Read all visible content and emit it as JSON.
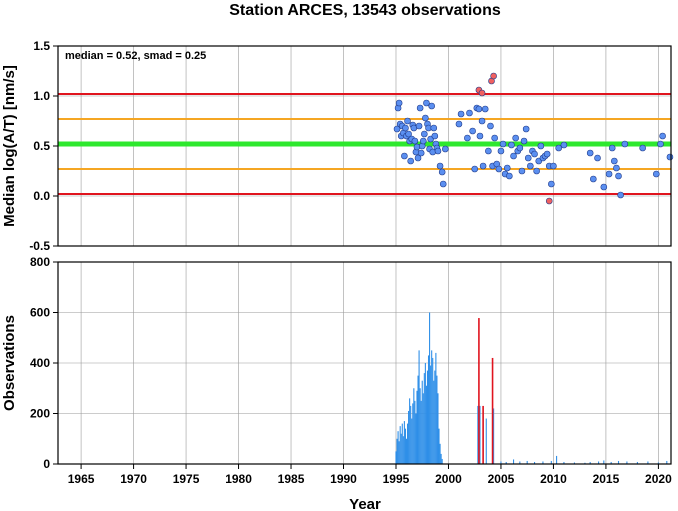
{
  "title": "Station ARCES, 13543 observations",
  "xlabel": "Year",
  "x_ticks": [
    "1965",
    "1970",
    "1975",
    "1980",
    "1985",
    "1990",
    "1995",
    "2000",
    "2005",
    "2010",
    "2015",
    "2020"
  ],
  "chart_data": [
    {
      "type": "scatter",
      "ylabel": "Median log(A/T) [nm/s]",
      "annotation": "median = 0.52, smad = 0.25",
      "xlim": [
        1962.8,
        2021.2
      ],
      "ylim": [
        -0.5,
        1.5
      ],
      "y_ticks": [
        "-0.5",
        "0.0",
        "0.5",
        "1.0",
        "1.5"
      ],
      "grid": true,
      "reference_lines": [
        {
          "y": 0.52,
          "color": "#2ee82e",
          "label": "median"
        },
        {
          "y": 0.77,
          "color": "#f5a623",
          "label": "median + smad"
        },
        {
          "y": 0.27,
          "color": "#f5a623",
          "label": "median - smad"
        },
        {
          "y": 1.02,
          "color": "#e0141e",
          "label": "median + 2 smad"
        },
        {
          "y": 0.02,
          "color": "#e0141e",
          "label": "median - 2 smad"
        }
      ],
      "colors": {
        "inlier": "#5b8ff0",
        "outlier": "#f06060"
      },
      "series": [
        {
          "points": [
            [
              1995.1,
              0.67
            ],
            [
              1995.2,
              0.88
            ],
            [
              1995.3,
              0.93
            ],
            [
              1995.4,
              0.72
            ],
            [
              1995.5,
              0.6
            ],
            [
              1995.6,
              0.7
            ],
            [
              1995.7,
              0.63
            ],
            [
              1995.8,
              0.4
            ],
            [
              1995.9,
              0.68
            ],
            [
              1996.0,
              0.6
            ],
            [
              1996.1,
              0.75
            ],
            [
              1996.2,
              0.62
            ],
            [
              1996.3,
              0.55
            ],
            [
              1996.4,
              0.35
            ],
            [
              1996.5,
              0.57
            ],
            [
              1996.6,
              0.71
            ],
            [
              1996.7,
              0.68
            ],
            [
              1996.8,
              0.55
            ],
            [
              1996.9,
              0.44
            ],
            [
              1997.0,
              0.49
            ],
            [
              1997.1,
              0.38
            ],
            [
              1997.2,
              0.7
            ],
            [
              1997.3,
              0.88
            ],
            [
              1997.4,
              0.43
            ],
            [
              1997.5,
              0.5
            ],
            [
              1997.6,
              0.55
            ],
            [
              1997.7,
              0.62
            ],
            [
              1997.8,
              0.78
            ],
            [
              1997.9,
              0.93
            ],
            [
              1998.0,
              0.72
            ],
            [
              1998.1,
              0.68
            ],
            [
              1998.2,
              0.47
            ],
            [
              1998.3,
              0.57
            ],
            [
              1998.4,
              0.9
            ],
            [
              1998.5,
              0.44
            ],
            [
              1998.6,
              0.68
            ],
            [
              1998.7,
              0.6
            ],
            [
              1998.8,
              0.52
            ],
            [
              1998.9,
              0.48
            ],
            [
              1999.0,
              0.45
            ],
            [
              1999.2,
              0.3
            ],
            [
              1999.4,
              0.24
            ],
            [
              1999.5,
              0.12
            ],
            [
              1999.7,
              0.47
            ],
            [
              2001.0,
              0.72
            ],
            [
              2001.2,
              0.82
            ],
            [
              2001.8,
              0.58
            ],
            [
              2002.0,
              0.83
            ],
            [
              2002.3,
              0.65
            ],
            [
              2002.5,
              0.27
            ],
            [
              2002.7,
              0.88
            ],
            [
              2002.9,
              0.87
            ],
            [
              2003.0,
              0.6
            ],
            [
              2003.2,
              0.75
            ],
            [
              2003.3,
              0.3
            ],
            [
              2003.5,
              0.87
            ],
            [
              2003.8,
              0.45
            ],
            [
              2004.0,
              0.7
            ],
            [
              2004.2,
              0.3
            ],
            [
              2004.4,
              0.58
            ],
            [
              2004.6,
              0.32
            ],
            [
              2004.8,
              0.27
            ],
            [
              2005.0,
              0.45
            ],
            [
              2005.2,
              0.52
            ],
            [
              2005.4,
              0.22
            ],
            [
              2005.6,
              0.28
            ],
            [
              2005.8,
              0.2
            ],
            [
              2006.0,
              0.51
            ],
            [
              2006.2,
              0.4
            ],
            [
              2006.4,
              0.58
            ],
            [
              2006.6,
              0.45
            ],
            [
              2006.8,
              0.48
            ],
            [
              2007.0,
              0.25
            ],
            [
              2007.2,
              0.55
            ],
            [
              2007.4,
              0.67
            ],
            [
              2007.6,
              0.38
            ],
            [
              2007.8,
              0.3
            ],
            [
              2008.0,
              0.45
            ],
            [
              2008.2,
              0.42
            ],
            [
              2008.4,
              0.25
            ],
            [
              2008.6,
              0.35
            ],
            [
              2008.8,
              0.5
            ],
            [
              2009.0,
              0.38
            ],
            [
              2009.2,
              0.4
            ],
            [
              2009.4,
              0.42
            ],
            [
              2009.6,
              0.3
            ],
            [
              2009.8,
              0.12
            ],
            [
              2010.0,
              0.3
            ],
            [
              2010.5,
              0.48
            ],
            [
              2011.0,
              0.51
            ],
            [
              2013.5,
              0.43
            ],
            [
              2013.8,
              0.17
            ],
            [
              2014.2,
              0.38
            ],
            [
              2014.8,
              0.09
            ],
            [
              2015.3,
              0.22
            ],
            [
              2015.6,
              0.48
            ],
            [
              2015.8,
              0.35
            ],
            [
              2016.0,
              0.28
            ],
            [
              2016.2,
              0.2
            ],
            [
              2016.4,
              0.01
            ],
            [
              2016.8,
              0.52
            ],
            [
              2018.5,
              0.48
            ],
            [
              2019.8,
              0.22
            ],
            [
              2020.2,
              0.52
            ],
            [
              2020.4,
              0.6
            ],
            [
              2021.1,
              0.39
            ]
          ]
        },
        {
          "points": [
            [
              2002.9,
              1.06
            ],
            [
              2003.2,
              1.03
            ],
            [
              2004.1,
              1.15
            ],
            [
              2004.3,
              1.2
            ],
            [
              2009.6,
              -0.05
            ]
          ]
        }
      ]
    },
    {
      "type": "bar",
      "ylabel": "Observations",
      "xlim": [
        1962.8,
        2021.2
      ],
      "ylim": [
        0,
        800
      ],
      "y_ticks": [
        "0",
        "200",
        "400",
        "600",
        "800"
      ],
      "grid": true,
      "colors": {
        "normal": "#2f8fe8",
        "outlier": "#e0141e"
      },
      "series": [
        {
          "bars": [
            [
              1995.0,
              50
            ],
            [
              1995.1,
              100
            ],
            [
              1995.2,
              130
            ],
            [
              1995.3,
              90
            ],
            [
              1995.4,
              150
            ],
            [
              1995.5,
              120
            ],
            [
              1995.6,
              160
            ],
            [
              1995.7,
              110
            ],
            [
              1995.8,
              170
            ],
            [
              1995.9,
              140
            ],
            [
              1996.0,
              100
            ],
            [
              1996.1,
              160
            ],
            [
              1996.2,
              210
            ],
            [
              1996.3,
              260
            ],
            [
              1996.4,
              230
            ],
            [
              1996.5,
              180
            ],
            [
              1996.6,
              240
            ],
            [
              1996.7,
              300
            ],
            [
              1996.8,
              250
            ],
            [
              1996.9,
              200
            ],
            [
              1997.0,
              290
            ],
            [
              1997.1,
              350
            ],
            [
              1997.2,
              450
            ],
            [
              1997.3,
              300
            ],
            [
              1997.4,
              250
            ],
            [
              1997.5,
              330
            ],
            [
              1997.6,
              280
            ],
            [
              1997.7,
              360
            ],
            [
              1997.8,
              400
            ],
            [
              1997.9,
              310
            ],
            [
              1998.0,
              370
            ],
            [
              1998.1,
              430
            ],
            [
              1998.2,
              600
            ],
            [
              1998.3,
              390
            ],
            [
              1998.4,
              450
            ],
            [
              1998.5,
              420
            ],
            [
              1998.6,
              330
            ],
            [
              1998.7,
              370
            ],
            [
              1998.8,
              440
            ],
            [
              1998.9,
              350
            ],
            [
              1999.0,
              280
            ],
            [
              1999.1,
              140
            ],
            [
              1999.2,
              80
            ],
            [
              1999.3,
              40
            ],
            [
              1999.4,
              20
            ],
            [
              2002.8,
              230
            ],
            [
              2003.0,
              230
            ],
            [
              2003.3,
              220
            ],
            [
              2003.6,
              180
            ],
            [
              2004.3,
              220
            ],
            [
              2005.0,
              10
            ],
            [
              2005.5,
              8
            ],
            [
              2006.2,
              18
            ],
            [
              2006.8,
              10
            ],
            [
              2007.5,
              12
            ],
            [
              2008.2,
              8
            ],
            [
              2009.0,
              10
            ],
            [
              2009.8,
              12
            ],
            [
              2010.3,
              32
            ],
            [
              2011.0,
              8
            ],
            [
              2012.0,
              6
            ],
            [
              2013.0,
              5
            ],
            [
              2013.5,
              8
            ],
            [
              2014.3,
              10
            ],
            [
              2014.8,
              14
            ],
            [
              2015.5,
              8
            ],
            [
              2016.2,
              12
            ],
            [
              2017.0,
              10
            ],
            [
              2018.0,
              8
            ],
            [
              2019.0,
              10
            ],
            [
              2020.0,
              6
            ],
            [
              2020.8,
              12
            ]
          ]
        },
        {
          "bars": [
            [
              2002.9,
              578
            ],
            [
              2003.3,
              230
            ],
            [
              2004.2,
              420
            ]
          ]
        }
      ]
    }
  ]
}
